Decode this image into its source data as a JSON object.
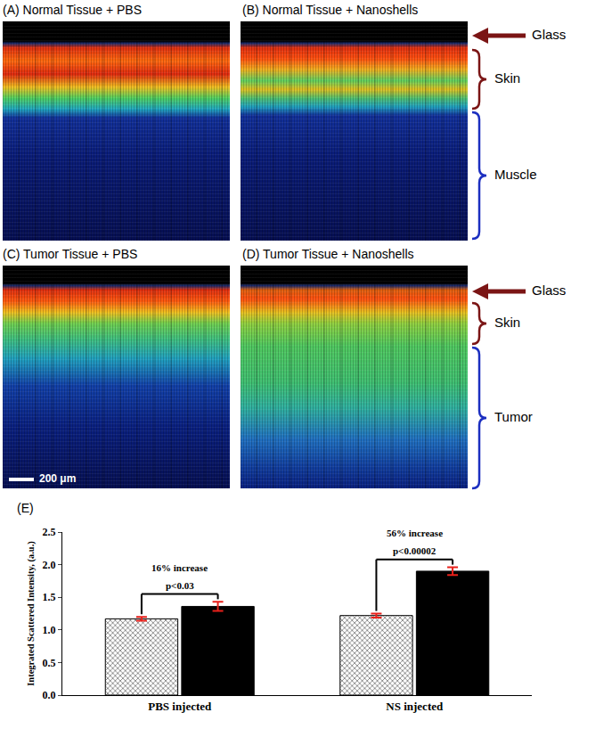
{
  "panels": [
    {
      "label": "(A) Normal Tissue + PBS"
    },
    {
      "label": "(B) Normal Tissue + Nanoshells"
    },
    {
      "label": "(C) Tumor Tissue + PBS"
    },
    {
      "label": "(D) Tumor Tissue + Nanoshells"
    }
  ],
  "layer_labels_top": [
    "Glass",
    "Skin",
    "Muscle"
  ],
  "layer_labels_bottom": [
    "Glass",
    "Skin",
    "Tumor"
  ],
  "scale_bar": "200 μm",
  "chart_data": {
    "type": "bar",
    "panel_label": "(E)",
    "categories": [
      "PBS injected",
      "NS injected"
    ],
    "series": [
      {
        "color": "#b0b0b0",
        "values": [
          1.17,
          1.22
        ],
        "errors": [
          0.03,
          0.03
        ]
      },
      {
        "color": "#000000",
        "values": [
          1.36,
          1.9
        ],
        "errors": [
          0.07,
          0.06
        ]
      }
    ],
    "ylabel": "Integrated Scattered Intensity, (a.u.)",
    "ylim": [
      0,
      2.5
    ],
    "yticks": [
      {
        "value": 0,
        "label": "0.0"
      },
      {
        "value": 0.5,
        "label": "0.5"
      },
      {
        "value": 1,
        "label": "1.0"
      },
      {
        "value": 1.5,
        "label": "1.5"
      },
      {
        "value": 2,
        "label": "2.0"
      },
      {
        "value": 2.5,
        "label": "2.5"
      }
    ],
    "grid": false,
    "annotations": [
      {
        "category": 0,
        "increase": "16% increase",
        "p": "p<0.03"
      },
      {
        "category": 1,
        "increase": "56% increase",
        "p": "p<0.00002"
      }
    ]
  }
}
